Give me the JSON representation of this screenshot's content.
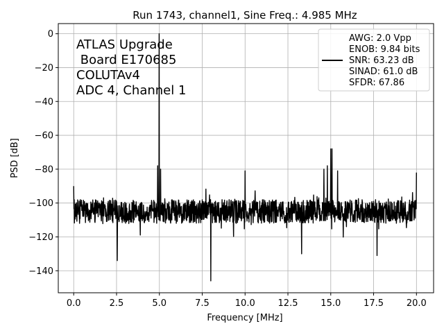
{
  "chart_data": {
    "type": "line",
    "title": "Run 1743, channel1, Sine Freq.: 4.985 MHz",
    "xlabel": "Frequency [MHz]",
    "ylabel": "PSD [dB]",
    "xlim": [
      -0.9,
      21.0
    ],
    "ylim": [
      -153,
      6
    ],
    "xticks": [
      "0.0",
      "2.5",
      "5.0",
      "7.5",
      "10.0",
      "12.5",
      "15.0",
      "17.5",
      "20.0"
    ],
    "xtick_values": [
      0,
      2.5,
      5,
      7.5,
      10,
      12.5,
      15,
      17.5,
      20
    ],
    "yticks": [
      "0",
      "−20",
      "−40",
      "−60",
      "−80",
      "−100",
      "−120",
      "−140"
    ],
    "ytick_values": [
      0,
      -20,
      -40,
      -60,
      -80,
      -100,
      -120,
      -140
    ],
    "grid": true,
    "legend_position": "top-right",
    "annotation_lines": [
      "ATLAS Upgrade",
      " Board E170685",
      "COLUTAv4",
      "ADC 4, Channel 1"
    ],
    "legend_lines": [
      "AWG: 2.0 Vpp",
      "ENOB: 9.84 bits",
      "SNR: 63.23 dB",
      "SINAD: 61.0 dB",
      "SFDR: 67.86"
    ],
    "line_color": "#000000",
    "noise_floor_db": -105,
    "peaks": [
      {
        "x": 0.0,
        "y": -90
      },
      {
        "x": 4.985,
        "y": 0
      },
      {
        "x": 4.9,
        "y": -78
      },
      {
        "x": 5.07,
        "y": -80
      },
      {
        "x": 10.0,
        "y": -81
      },
      {
        "x": 15.0,
        "y": -68
      },
      {
        "x": 15.07,
        "y": -68
      },
      {
        "x": 14.6,
        "y": -80
      },
      {
        "x": 14.8,
        "y": -78
      },
      {
        "x": 15.4,
        "y": -81
      },
      {
        "x": 20.0,
        "y": -82
      }
    ],
    "dips": [
      {
        "x": 2.55,
        "y": -134
      },
      {
        "x": 8.0,
        "y": -146
      },
      {
        "x": 13.3,
        "y": -130
      },
      {
        "x": 17.7,
        "y": -131
      }
    ]
  }
}
